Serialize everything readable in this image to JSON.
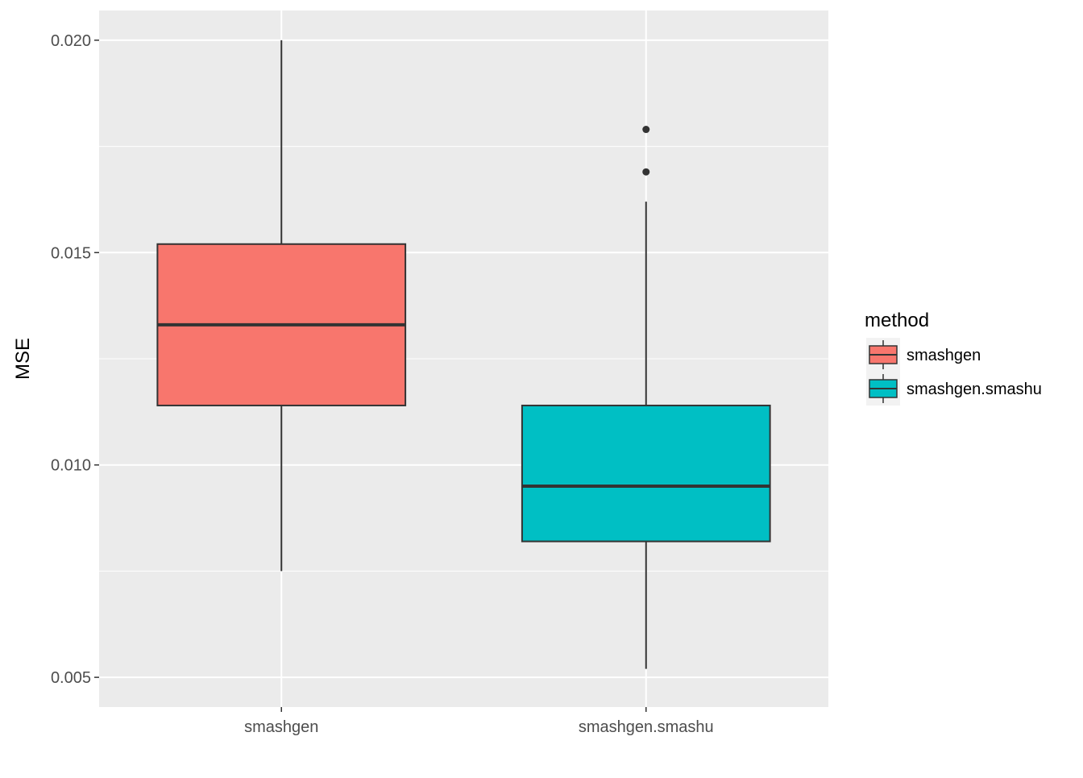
{
  "chart_data": {
    "type": "box",
    "title": "",
    "xlabel": "",
    "ylabel": "MSE",
    "ylim": [
      0.0043,
      0.0207
    ],
    "y_ticks": [
      0.005,
      0.01,
      0.015,
      0.02
    ],
    "y_tick_labels": [
      "0.005",
      "0.010",
      "0.015",
      "0.020"
    ],
    "categories": [
      "smashgen",
      "smashgen.smashu"
    ],
    "grid": true,
    "legend": {
      "title": "method",
      "position": "right",
      "entries": [
        "smashgen",
        "smashgen.smashu"
      ]
    },
    "series": [
      {
        "name": "smashgen",
        "color": "#F8766D",
        "min": 0.0075,
        "q1": 0.0114,
        "median": 0.0133,
        "q3": 0.0152,
        "max": 0.02,
        "outliers": []
      },
      {
        "name": "smashgen.smashu",
        "color": "#00BFC4",
        "min": 0.0052,
        "q1": 0.0082,
        "median": 0.0095,
        "q3": 0.0114,
        "max": 0.0162,
        "outliers": [
          0.0169,
          0.0179
        ]
      }
    ]
  }
}
